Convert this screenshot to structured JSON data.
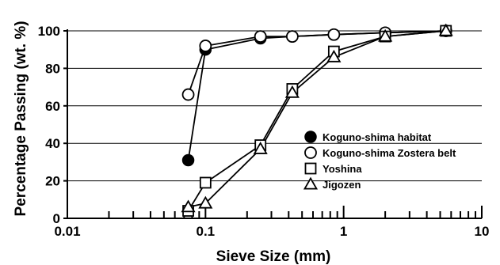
{
  "chart_data": {
    "type": "line",
    "xlabel": "Sieve Size (mm)",
    "ylabel": "Percentage Passing (wt. %)",
    "x_scale": "log",
    "xlim": [
      0.01,
      10
    ],
    "ylim": [
      0,
      100
    ],
    "x_ticks": [
      0.01,
      0.1,
      1,
      10
    ],
    "x_tick_labels": [
      "0.01",
      "0.1",
      "1",
      "10"
    ],
    "y_ticks": [
      0,
      20,
      40,
      60,
      80,
      100
    ],
    "y_tick_labels": [
      "0",
      "20",
      "40",
      "60",
      "80",
      "100"
    ],
    "grid": "horizontal",
    "legend_position": "bottom-right",
    "series": [
      {
        "name": "Koguno-shima habitat",
        "marker": "filled-circle",
        "x": [
          0.075,
          0.1,
          0.25,
          0.425,
          0.85,
          2,
          5.5
        ],
        "y": [
          31,
          90,
          96,
          97,
          98,
          99,
          100
        ]
      },
      {
        "name": "Koguno-shima Zostera belt",
        "marker": "open-circle",
        "x": [
          0.075,
          0.1,
          0.25,
          0.425,
          0.85,
          2,
          5.5
        ],
        "y": [
          66,
          92,
          97,
          97,
          98,
          99,
          100
        ]
      },
      {
        "name": "Yoshina",
        "marker": "open-square",
        "x": [
          0.075,
          0.1,
          0.25,
          0.425,
          0.85,
          2,
          5.5
        ],
        "y": [
          4,
          19,
          39,
          69,
          89,
          97,
          100
        ]
      },
      {
        "name": "Jigozen",
        "marker": "open-triangle",
        "x": [
          0.075,
          0.1,
          0.25,
          0.425,
          0.85,
          2,
          5.5
        ],
        "y": [
          6,
          8,
          37,
          67,
          86,
          97,
          100
        ]
      }
    ]
  }
}
